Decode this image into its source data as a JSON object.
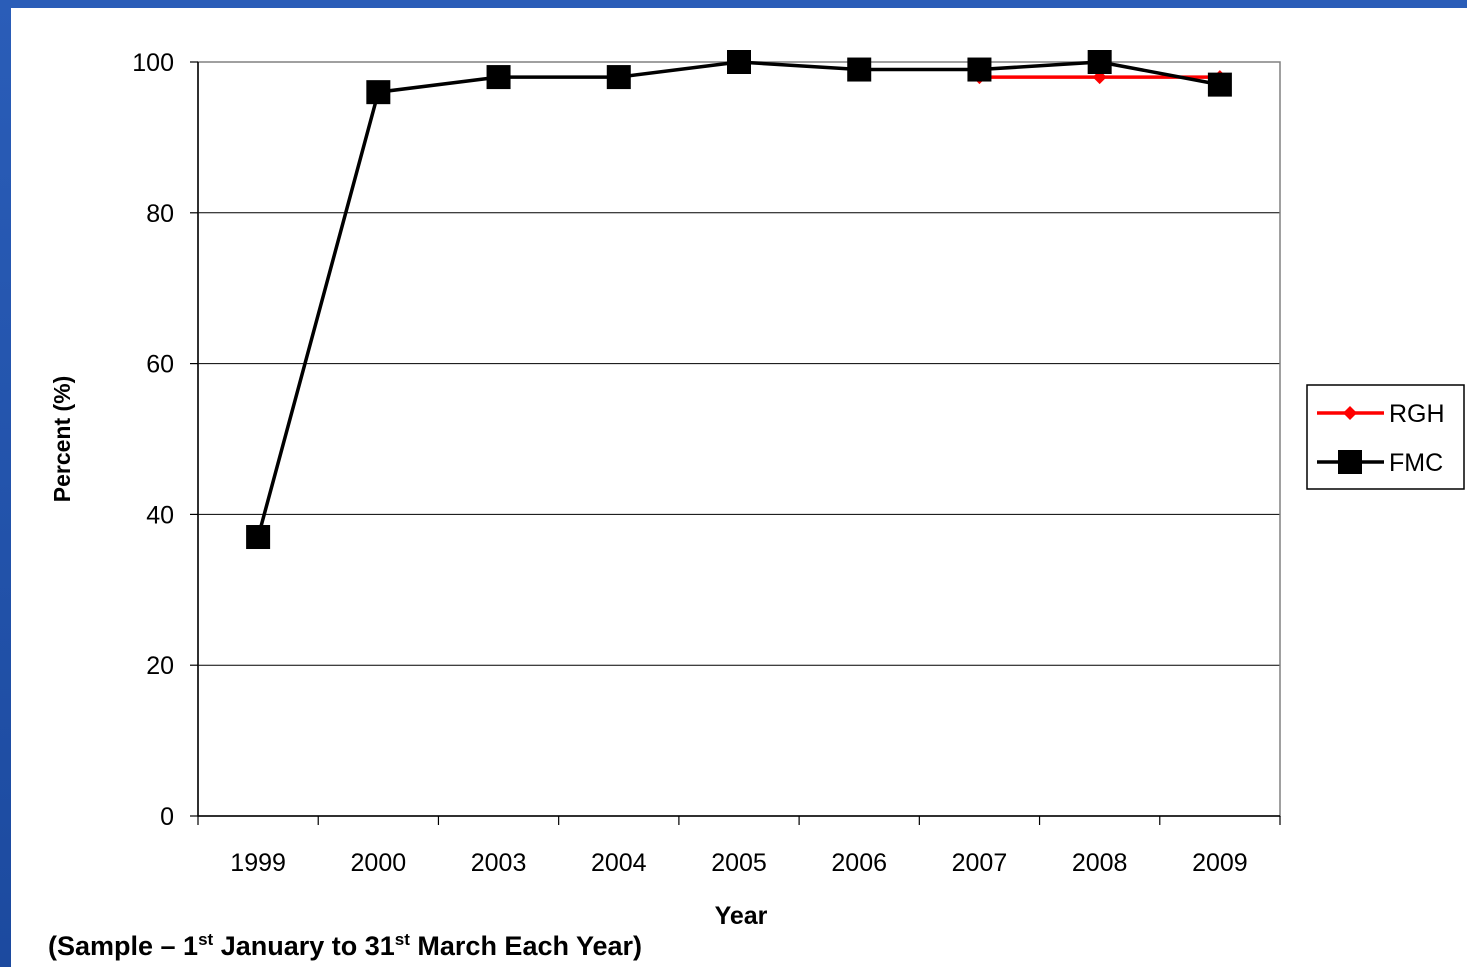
{
  "chart_data": {
    "type": "line",
    "categories": [
      "1999",
      "2000",
      "2003",
      "2004",
      "2005",
      "2006",
      "2007",
      "2008",
      "2009"
    ],
    "series": [
      {
        "name": "RGH",
        "color": "#ff0000",
        "marker": "diamond",
        "values": [
          null,
          null,
          null,
          null,
          null,
          null,
          98,
          98,
          98
        ]
      },
      {
        "name": "FMC",
        "color": "#000000",
        "marker": "square",
        "values": [
          37,
          96,
          98,
          98,
          100,
          99,
          99,
          100,
          97
        ]
      }
    ],
    "ylim": [
      0,
      100
    ],
    "yticks": [
      "0",
      "20",
      "40",
      "60",
      "80",
      "100"
    ],
    "xlabel": "Year",
    "ylabel": "Percent (%)",
    "grid": true,
    "legend_position": "right"
  },
  "footnote": {
    "prefix": "(Sample – 1",
    "sup1": "st",
    "middle": " January to 31",
    "sup2": "st",
    "suffix": " March Each Year)"
  }
}
